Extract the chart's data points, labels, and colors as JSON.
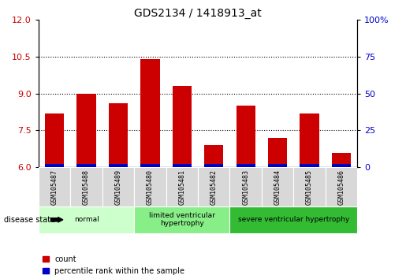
{
  "title": "GDS2134 / 1418913_at",
  "samples": [
    "GSM105487",
    "GSM105488",
    "GSM105489",
    "GSM105480",
    "GSM105481",
    "GSM105482",
    "GSM105483",
    "GSM105484",
    "GSM105485",
    "GSM105486"
  ],
  "red_values": [
    8.2,
    9.0,
    8.6,
    10.4,
    9.3,
    6.9,
    8.5,
    7.2,
    8.2,
    6.6
  ],
  "blue_heights": [
    0.15,
    0.15,
    0.15,
    0.15,
    0.15,
    0.15,
    0.15,
    0.15,
    0.15,
    0.15
  ],
  "ymin": 6.0,
  "ymax": 12.0,
  "yticks_left": [
    6,
    7.5,
    9,
    10.5,
    12
  ],
  "yticks_right_vals": [
    0,
    25,
    50,
    75,
    100
  ],
  "yticks_right_labels": [
    "0",
    "25",
    "50",
    "75",
    "100%"
  ],
  "hlines": [
    7.5,
    9.0,
    10.5
  ],
  "groups": [
    {
      "label": "normal",
      "start": 0,
      "end": 3,
      "color": "#ccffcc"
    },
    {
      "label": "limited ventricular\nhypertrophy",
      "start": 3,
      "end": 6,
      "color": "#88ee88"
    },
    {
      "label": "severe ventricular hypertrophy",
      "start": 6,
      "end": 10,
      "color": "#33bb33"
    }
  ],
  "bar_width": 0.6,
  "red_color": "#cc0000",
  "blue_color": "#0000cc",
  "label_count": "count",
  "label_percentile": "percentile rank within the sample",
  "disease_state_label": "disease state"
}
